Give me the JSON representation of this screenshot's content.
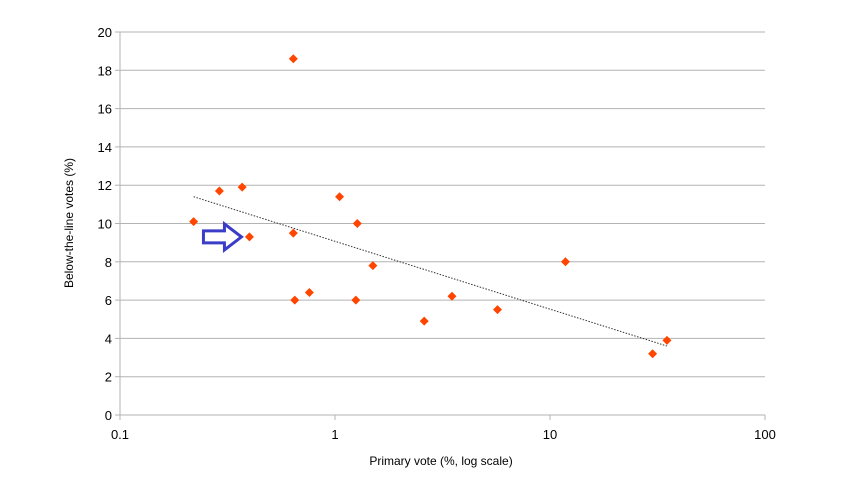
{
  "chart_data": {
    "type": "scatter",
    "xlabel": "Primary vote (%, log scale)",
    "ylabel": "Below-the-line votes (%)",
    "x_scale": "log",
    "xlim": [
      0.1,
      100
    ],
    "ylim": [
      0,
      20
    ],
    "x_ticks": [
      0.1,
      1,
      10,
      100
    ],
    "x_tick_labels": [
      "0.1",
      "1",
      "10",
      "100"
    ],
    "y_ticks": [
      0,
      2,
      4,
      6,
      8,
      10,
      12,
      14,
      16,
      18,
      20
    ],
    "y_tick_labels": [
      "0",
      "2",
      "4",
      "6",
      "8",
      "10",
      "12",
      "14",
      "16",
      "18",
      "20"
    ],
    "grid": "horizontal",
    "legend": "none",
    "marker": "diamond",
    "colors": {
      "points": "#ff4500",
      "trendline": "#333333",
      "arrow": "#3b3dc8",
      "grid": "#b3b3b3"
    },
    "points": [
      {
        "x": 0.22,
        "y": 10.1
      },
      {
        "x": 0.29,
        "y": 11.7
      },
      {
        "x": 0.37,
        "y": 11.9
      },
      {
        "x": 0.4,
        "y": 9.3
      },
      {
        "x": 0.64,
        "y": 18.6
      },
      {
        "x": 0.64,
        "y": 9.5
      },
      {
        "x": 0.65,
        "y": 6.0
      },
      {
        "x": 0.76,
        "y": 6.4
      },
      {
        "x": 1.05,
        "y": 11.4
      },
      {
        "x": 1.25,
        "y": 6.0
      },
      {
        "x": 1.27,
        "y": 10.0
      },
      {
        "x": 1.5,
        "y": 7.8
      },
      {
        "x": 2.6,
        "y": 4.9
      },
      {
        "x": 3.5,
        "y": 6.2
      },
      {
        "x": 5.7,
        "y": 5.5
      },
      {
        "x": 11.8,
        "y": 8.0
      },
      {
        "x": 30,
        "y": 3.2
      },
      {
        "x": 35,
        "y": 3.9
      }
    ],
    "trendline": {
      "style": "dotted",
      "from": {
        "x": 0.22,
        "y": 11.4
      },
      "to": {
        "x": 35,
        "y": 3.6
      }
    },
    "annotation": {
      "shape": "arrow-right",
      "points_to": {
        "x": 0.4,
        "y": 9.3
      }
    }
  }
}
